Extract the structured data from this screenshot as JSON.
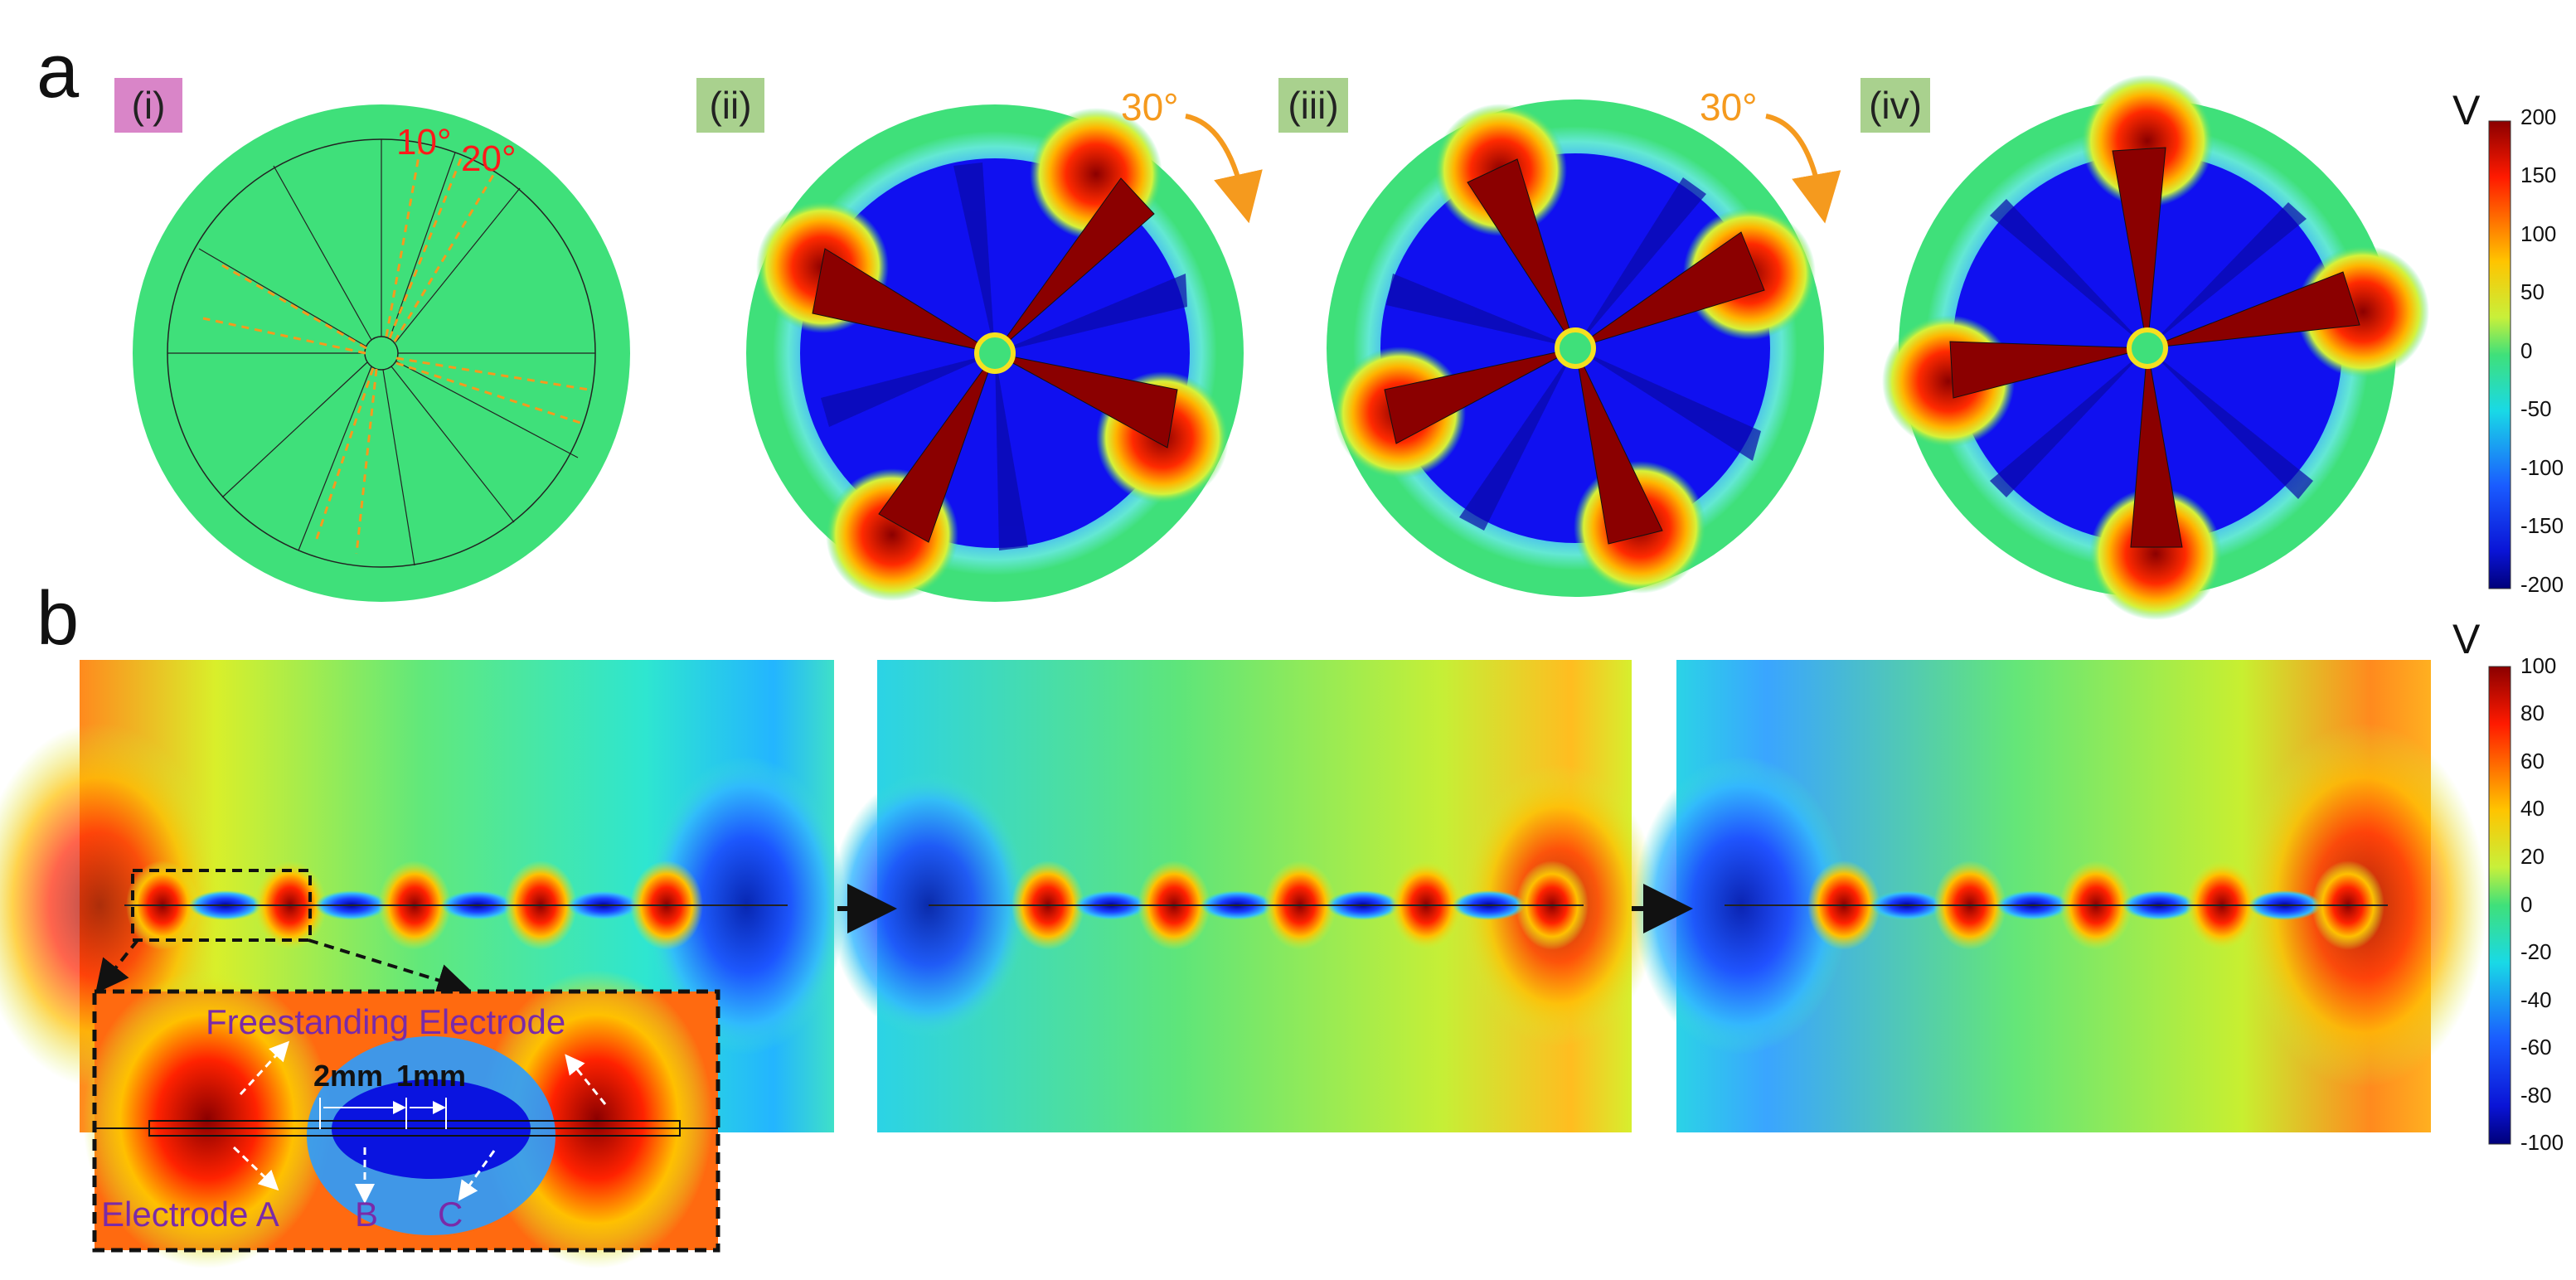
{
  "panel_a": {
    "letter": "a",
    "labels": [
      {
        "text": "(i)",
        "bg": "#d985c8"
      },
      {
        "text": "(ii)",
        "bg": "#a9d18e"
      },
      {
        "text": "(iii)",
        "bg": "#a9d18e"
      },
      {
        "text": "(iv)",
        "bg": "#a9d18e"
      }
    ],
    "angle_labels": [
      "10°",
      "20°"
    ],
    "rotation_labels": [
      "30°",
      "30°"
    ],
    "colorbar": {
      "unit": "V",
      "ticks": [
        "200",
        "150",
        "100",
        "50",
        "0",
        "-50",
        "-100",
        "-150",
        "-200"
      ]
    }
  },
  "panel_b": {
    "letter": "b",
    "inset": {
      "freestanding_label": "Freestanding Electrode",
      "electrode_a_label": "Electrode A",
      "b_label": "B",
      "c_label": "C",
      "dim_2mm": "2mm",
      "dim_1mm": "1mm"
    },
    "colorbar": {
      "unit": "V",
      "ticks": [
        "100",
        "80",
        "60",
        "40",
        "20",
        "0",
        "-20",
        "-40",
        "-60",
        "-80",
        "-100"
      ]
    }
  },
  "colors": {
    "red": "#8b0000",
    "blue": "#1414e6",
    "green": "#3fe07a",
    "orange": "#f59a1e",
    "annotation_red": "#ff1a1a",
    "annotation_purple": "#7a2aa8"
  }
}
